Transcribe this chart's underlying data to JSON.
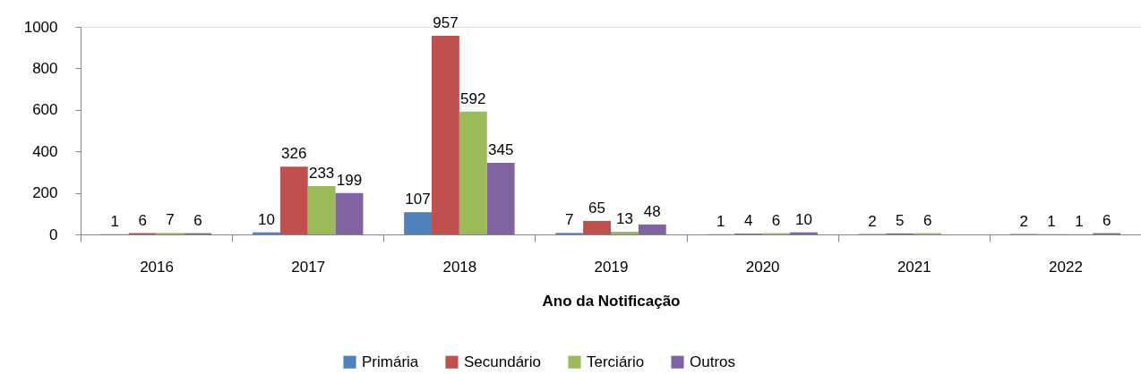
{
  "chart_data": {
    "type": "bar",
    "xlabel": "Ano da Notificação",
    "categories": [
      "2016",
      "2017",
      "2018",
      "2019",
      "2020",
      "2021",
      "2022"
    ],
    "series": [
      {
        "name": "Primária",
        "color": "#4f81bd",
        "values": [
          1,
          10,
          107,
          7,
          1,
          2,
          2
        ]
      },
      {
        "name": "Secundário",
        "color": "#c0504d",
        "values": [
          6,
          326,
          957,
          65,
          4,
          5,
          1
        ]
      },
      {
        "name": "Terciário",
        "color": "#9bbb59",
        "values": [
          7,
          233,
          592,
          13,
          6,
          6,
          1
        ]
      },
      {
        "name": "Outros",
        "color": "#8064a2",
        "values": [
          6,
          199,
          345,
          48,
          10,
          null,
          6
        ]
      }
    ],
    "ylim": [
      0,
      1000
    ],
    "yticks": [
      0,
      200,
      400,
      600,
      800,
      1000
    ],
    "data_labels": true,
    "legend": "bottom"
  }
}
